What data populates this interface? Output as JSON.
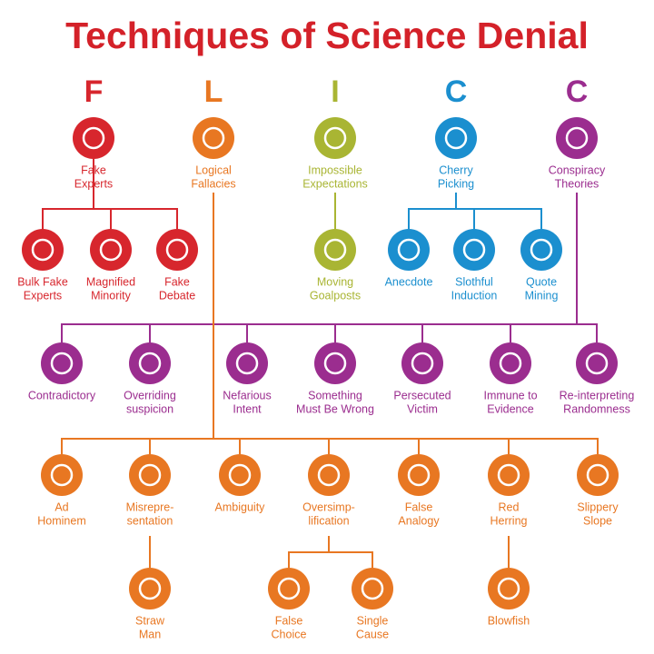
{
  "title": "Techniques of Science Denial",
  "letters": [
    "F",
    "L",
    "I",
    "C",
    "C"
  ],
  "nodes": [
    {
      "label": [
        "Fake",
        "Experts"
      ]
    },
    {
      "label": [
        "Logical",
        "Fallacies"
      ]
    },
    {
      "label": [
        "Impossible",
        "Expectations"
      ]
    },
    {
      "label": [
        "Cherry",
        "Picking"
      ]
    },
    {
      "label": [
        "Conspiracy",
        "Theories"
      ]
    },
    {
      "label": [
        "Bulk Fake",
        "Experts"
      ]
    },
    {
      "label": [
        "Magnified",
        "Minority"
      ]
    },
    {
      "label": [
        "Fake",
        "Debate"
      ]
    },
    {
      "label": [
        "Moving",
        "Goalposts"
      ]
    },
    {
      "label": [
        "Anecdote"
      ]
    },
    {
      "label": [
        "Slothful",
        "Induction"
      ]
    },
    {
      "label": [
        "Quote",
        "Mining"
      ]
    },
    {
      "label": [
        "Contradictory"
      ]
    },
    {
      "label": [
        "Overriding",
        "suspicion"
      ]
    },
    {
      "label": [
        "Nefarious",
        "Intent"
      ]
    },
    {
      "label": [
        "Something",
        "Must Be Wrong"
      ]
    },
    {
      "label": [
        "Persecuted",
        "Victim"
      ]
    },
    {
      "label": [
        "Immune to",
        "Evidence"
      ]
    },
    {
      "label": [
        "Re-interpreting",
        "Randomness"
      ]
    },
    {
      "label": [
        "Ad",
        "Hominem"
      ]
    },
    {
      "label": [
        "Misrepre-",
        "sentation"
      ]
    },
    {
      "label": [
        "Ambiguity"
      ]
    },
    {
      "label": [
        "Oversimp-",
        "lification"
      ]
    },
    {
      "label": [
        "False",
        "Analogy"
      ]
    },
    {
      "label": [
        "Red",
        "Herring"
      ]
    },
    {
      "label": [
        "Slippery",
        "Slope"
      ]
    },
    {
      "label": [
        "Straw",
        "Man"
      ]
    },
    {
      "label": [
        "False",
        "Choice"
      ]
    },
    {
      "label": [
        "Single",
        "Cause"
      ]
    },
    {
      "label": [
        "Blowfish"
      ]
    }
  ]
}
